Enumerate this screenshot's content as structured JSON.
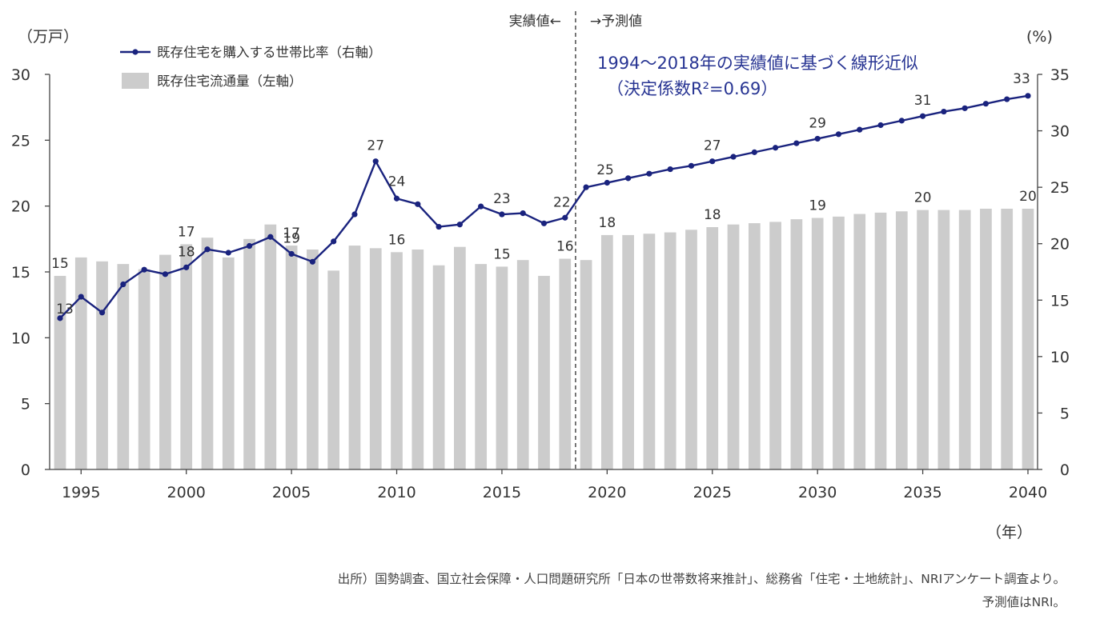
{
  "chart_data": {
    "type": "bar+line",
    "categories": [
      1994,
      1995,
      1996,
      1997,
      1998,
      1999,
      2000,
      2001,
      2002,
      2003,
      2004,
      2005,
      2006,
      2007,
      2008,
      2009,
      2010,
      2011,
      2012,
      2013,
      2014,
      2015,
      2016,
      2017,
      2018,
      2019,
      2020,
      2021,
      2022,
      2023,
      2024,
      2025,
      2026,
      2027,
      2028,
      2029,
      2030,
      2031,
      2032,
      2033,
      2034,
      2035,
      2036,
      2037,
      2038,
      2039,
      2040
    ],
    "x_tick_labels": [
      "1995",
      "2000",
      "2005",
      "2010",
      "2015",
      "2020",
      "2025",
      "2030",
      "2035",
      "2040"
    ],
    "x_ticks": [
      1995,
      2000,
      2005,
      2010,
      2015,
      2020,
      2025,
      2030,
      2035,
      2040
    ],
    "xlabel": "（年）",
    "y_left": {
      "label": "（万戸）",
      "lim": [
        0,
        30
      ],
      "ticks": [
        0,
        5,
        10,
        15,
        20,
        25,
        30
      ],
      "tick_labels": [
        "0",
        "5",
        "10",
        "15",
        "20",
        "25",
        "30"
      ]
    },
    "y_right": {
      "label": "(%)",
      "lim": [
        0,
        35
      ],
      "ticks": [
        0,
        5,
        10,
        15,
        20,
        25,
        30,
        35
      ],
      "tick_labels": [
        "0",
        "5",
        "10",
        "15",
        "20",
        "25",
        "30",
        "35"
      ]
    },
    "series": [
      {
        "name": "既存住宅流通量（左軸）",
        "type": "bar",
        "axis": "left",
        "color": "#cccccc",
        "values": [
          14.7,
          16.1,
          15.8,
          15.6,
          15.2,
          16.3,
          17.1,
          17.6,
          16.1,
          17.5,
          18.6,
          17.0,
          16.7,
          15.1,
          17.0,
          16.8,
          16.5,
          16.7,
          15.5,
          16.9,
          15.6,
          15.4,
          15.9,
          14.7,
          16.0,
          15.9,
          17.8,
          17.8,
          17.9,
          18.0,
          18.2,
          18.4,
          18.6,
          18.7,
          18.8,
          19.0,
          19.1,
          19.2,
          19.4,
          19.5,
          19.6,
          19.7,
          19.7,
          19.7,
          19.8,
          19.8,
          19.8
        ]
      },
      {
        "name": "既存住宅を購入する世帯比率（右軸）",
        "type": "line",
        "axis": "right",
        "color": "#1a237e",
        "values": [
          13.4,
          15.3,
          13.9,
          16.4,
          17.7,
          17.3,
          17.9,
          19.5,
          19.2,
          19.8,
          20.6,
          19.1,
          18.4,
          20.2,
          22.6,
          27.3,
          24.0,
          23.5,
          21.5,
          21.7,
          23.3,
          22.6,
          22.7,
          21.8,
          22.3,
          25.0,
          25.4,
          25.8,
          26.2,
          26.6,
          26.9,
          27.3,
          27.7,
          28.1,
          28.5,
          28.9,
          29.3,
          29.7,
          30.1,
          30.5,
          30.9,
          31.3,
          31.7,
          32.0,
          32.4,
          32.8,
          33.1
        ]
      }
    ],
    "bar_labels": [
      {
        "x": 1994,
        "text": "15"
      },
      {
        "x": 2000,
        "text": "17"
      },
      {
        "x": 2005,
        "text": "17"
      },
      {
        "x": 2010,
        "text": "16"
      },
      {
        "x": 2015,
        "text": "15"
      },
      {
        "x": 2018,
        "text": "16"
      },
      {
        "x": 2020,
        "text": "18"
      },
      {
        "x": 2025,
        "text": "18"
      },
      {
        "x": 2030,
        "text": "19"
      },
      {
        "x": 2035,
        "text": "20"
      },
      {
        "x": 2040,
        "text": "20"
      }
    ],
    "line_labels": [
      {
        "x": 1994,
        "text": "13"
      },
      {
        "x": 2000,
        "text": "18"
      },
      {
        "x": 2005,
        "text": "19"
      },
      {
        "x": 2009,
        "text": "27"
      },
      {
        "x": 2010,
        "text": "24"
      },
      {
        "x": 2015,
        "text": "23"
      },
      {
        "x": 2018,
        "text": "22"
      },
      {
        "x": 2019,
        "text": "25"
      },
      {
        "x": 2025,
        "text": "27"
      },
      {
        "x": 2030,
        "text": "29"
      },
      {
        "x": 2035,
        "text": "31"
      },
      {
        "x": 2040,
        "text": "33"
      }
    ],
    "divider": {
      "x": 2018.5,
      "left_label": "実績値←",
      "right_label": "→予測値"
    },
    "annotation": {
      "line1": "1994～2018年の実績値に基づく線形近似",
      "line2": "（決定係数R²=0.69）",
      "color": "#283593"
    }
  },
  "source": {
    "line1": "出所）国勢調査、国立社会保障・人口問題研究所「日本の世帯数将来推計」、総務省「住宅・土地統計」、NRIアンケート調査より。",
    "line2": "予測値はNRI。"
  }
}
